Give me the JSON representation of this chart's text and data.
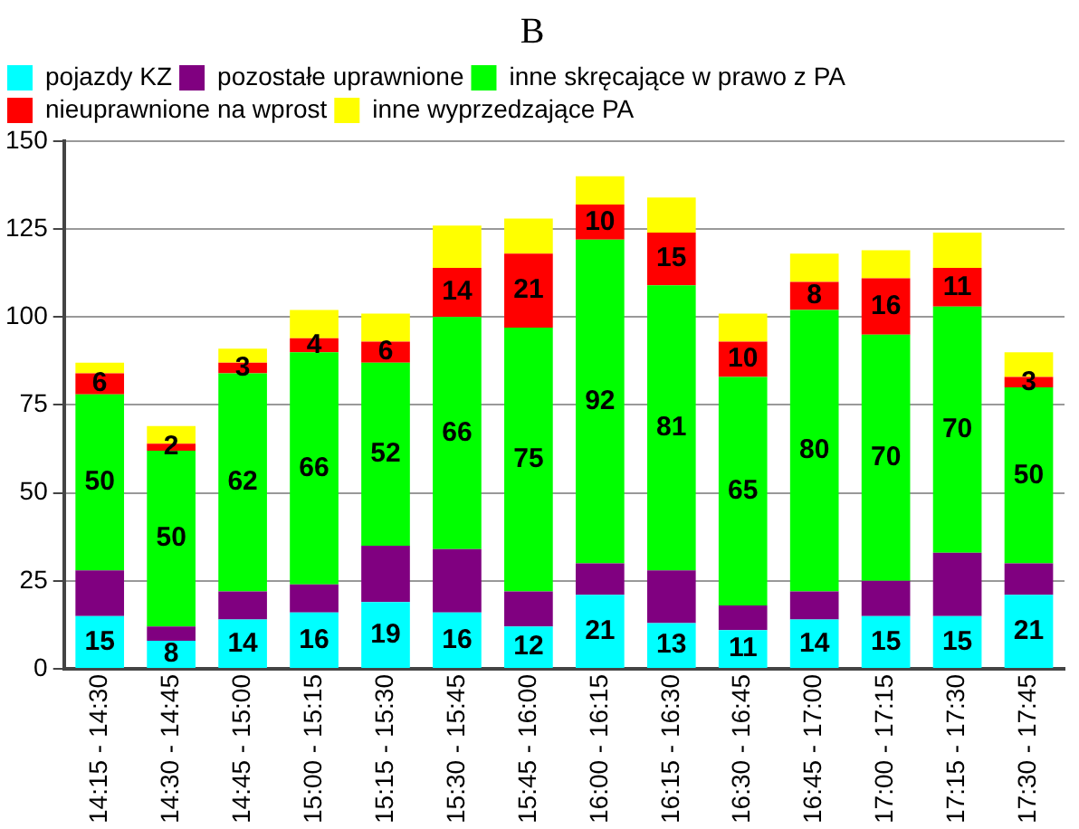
{
  "chart_data": {
    "type": "bar",
    "title": "B",
    "stacked": true,
    "legend": "top",
    "grid": "y",
    "categories": [
      "14:15 - 14:30",
      "14:30 - 14:45",
      "14:45 - 15:00",
      "15:00 - 15:15",
      "15:15 - 15:30",
      "15:30 - 15:45",
      "15:45 - 16:00",
      "16:00 - 16:15",
      "16:15 - 16:30",
      "16:30 - 16:45",
      "16:45 - 17:00",
      "17:00 - 17:15",
      "17:15 - 17:30",
      "17:30 - 17:45"
    ],
    "ylim": [
      0,
      150
    ],
    "yticks": [
      0,
      25,
      50,
      75,
      100,
      125,
      150
    ],
    "series": [
      {
        "name": "pojazdy KZ",
        "color": "#00ffff",
        "values": [
          15,
          8,
          14,
          16,
          19,
          16,
          12,
          21,
          13,
          11,
          14,
          15,
          15,
          21
        ],
        "value_labels": [
          "15",
          "8",
          "14",
          "16",
          "19",
          "16",
          "12",
          "21",
          "13",
          "11",
          "14",
          "15",
          "15",
          "21"
        ]
      },
      {
        "name": "pozostałe uprawnione",
        "color": "#800080",
        "values": [
          13,
          4,
          8,
          8,
          16,
          18,
          10,
          9,
          15,
          7,
          8,
          10,
          18,
          9
        ]
      },
      {
        "name": "inne skręcające w prawo z PA",
        "color": "#00ff00",
        "values": [
          50,
          50,
          62,
          66,
          52,
          66,
          75,
          92,
          81,
          65,
          80,
          70,
          70,
          50
        ],
        "value_labels": [
          "50",
          "50",
          "62",
          "66",
          "52",
          "66",
          "75",
          "92",
          "81",
          "65",
          "80",
          "70",
          "70",
          "50"
        ]
      },
      {
        "name": "nieuprawnione na wprost",
        "color": "#ff0000",
        "values": [
          6,
          2,
          3,
          4,
          6,
          14,
          21,
          10,
          15,
          10,
          8,
          16,
          11,
          3
        ],
        "value_labels": [
          "6",
          "2",
          "3",
          "4",
          "6",
          "14",
          "21",
          "10",
          "15",
          "10",
          "8",
          "16",
          "11",
          "3"
        ]
      },
      {
        "name": "inne wyprzedzające PA",
        "color": "#ffff00",
        "values": [
          3,
          5,
          4,
          8,
          8,
          12,
          10,
          8,
          10,
          8,
          8,
          8,
          10,
          7
        ]
      }
    ]
  }
}
